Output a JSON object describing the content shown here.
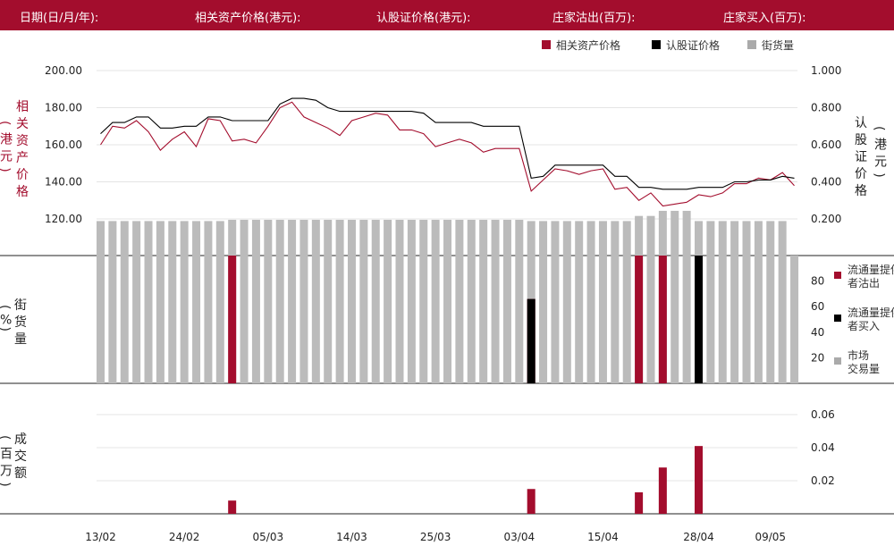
{
  "header": {
    "date_label": "日期(日/月/年):",
    "asset_price_label": "相关资产价格(港元):",
    "warrant_price_label": "认股证价格(港元):",
    "sell_label": "庄家沽出(百万):",
    "buy_label": "庄家买入(百万):"
  },
  "colors": {
    "header_bg": "#a30d2d",
    "asset": "#a30d2d",
    "warrant": "#000000",
    "outstanding": "#bbbbbb"
  },
  "chart_data": {
    "type": "combo",
    "x_tick_labels": [
      {
        "index": 0,
        "label": "13/02"
      },
      {
        "index": 7,
        "label": "24/02"
      },
      {
        "index": 14,
        "label": "05/03"
      },
      {
        "index": 21,
        "label": "14/03"
      },
      {
        "index": 28,
        "label": "25/03"
      },
      {
        "index": 35,
        "label": "03/04"
      },
      {
        "index": 42,
        "label": "15/04"
      },
      {
        "index": 50,
        "label": "28/04"
      },
      {
        "index": 56,
        "label": "09/05"
      }
    ],
    "price_panel": {
      "left_axis_label": "相关资产价格(港元)",
      "right_axis_label": "认股证价格(港元)",
      "left_ticks": [
        "200.00",
        "180.00",
        "160.00",
        "140.00",
        "120.00"
      ],
      "right_ticks": [
        "1.000",
        "0.800",
        "0.600",
        "0.400",
        "0.200"
      ],
      "left_range": [
        110,
        210
      ],
      "right_range": [
        0.15,
        1.05
      ],
      "legend": [
        {
          "name": "相关资产价格",
          "color": "#a30d2d"
        },
        {
          "name": "认股证价格",
          "color": "#000000"
        },
        {
          "name": "街货量",
          "color": "#aaaaaa"
        }
      ],
      "asset_price": [
        160,
        170,
        169,
        173,
        167,
        157,
        163,
        167,
        159,
        174,
        173,
        162,
        163,
        161,
        170,
        180,
        183,
        175,
        172,
        169,
        165,
        173,
        175,
        177,
        176,
        168,
        168,
        166,
        159,
        161,
        163,
        161,
        156,
        158,
        158,
        158,
        135,
        141,
        147,
        146,
        144,
        146,
        147,
        136,
        137,
        130,
        134,
        127,
        128,
        129,
        133,
        132,
        134,
        139,
        139,
        142,
        141,
        145,
        138
      ],
      "warrant_price": [
        0.66,
        0.72,
        0.72,
        0.75,
        0.75,
        0.69,
        0.69,
        0.7,
        0.7,
        0.75,
        0.75,
        0.73,
        0.73,
        0.73,
        0.73,
        0.82,
        0.85,
        0.85,
        0.84,
        0.8,
        0.78,
        0.78,
        0.78,
        0.78,
        0.78,
        0.78,
        0.78,
        0.77,
        0.72,
        0.72,
        0.72,
        0.72,
        0.7,
        0.7,
        0.7,
        0.7,
        0.42,
        0.43,
        0.49,
        0.49,
        0.49,
        0.49,
        0.49,
        0.43,
        0.43,
        0.37,
        0.37,
        0.36,
        0.36,
        0.36,
        0.37,
        0.37,
        0.37,
        0.4,
        0.4,
        0.41,
        0.41,
        0.43,
        0.42
      ]
    },
    "outstanding_panel": {
      "axis_label": "街货量(%)",
      "ticks": [
        "80",
        "60",
        "40",
        "20"
      ],
      "range": [
        0,
        100
      ],
      "legend": [
        {
          "name": "流通量提供者沽出",
          "color": "#a30d2d"
        },
        {
          "name": "流通量提供者买入",
          "color": "#000000"
        },
        {
          "name": "市场交易量",
          "color": "#aaaaaa"
        }
      ],
      "outstanding_pct": [
        127,
        127,
        127,
        127,
        127,
        127,
        127,
        127,
        127,
        127,
        127,
        128,
        128,
        128,
        128,
        128,
        128,
        128,
        128,
        128,
        128,
        128,
        128,
        128,
        128,
        128,
        128,
        128,
        128,
        128,
        128,
        128,
        128,
        128,
        128,
        128,
        127,
        127,
        127,
        127,
        127,
        127,
        127,
        127,
        127,
        131,
        131,
        135,
        135,
        135,
        127,
        127,
        127,
        127,
        127,
        127,
        127,
        127,
        100
      ],
      "lp_sell": {
        "11": 100,
        "36": 66,
        "45": 100,
        "47": 100
      },
      "lp_buy": {
        "36": 66,
        "50": 100
      }
    },
    "turnover_panel": {
      "axis_label": "成交额(百万)",
      "ticks": [
        "0.06",
        "0.04",
        "0.02"
      ],
      "range": [
        0,
        0.07
      ],
      "values": {
        "11": 0.008,
        "36": 0.015,
        "45": 0.013,
        "47": 0.028,
        "50": 0.041
      }
    }
  }
}
